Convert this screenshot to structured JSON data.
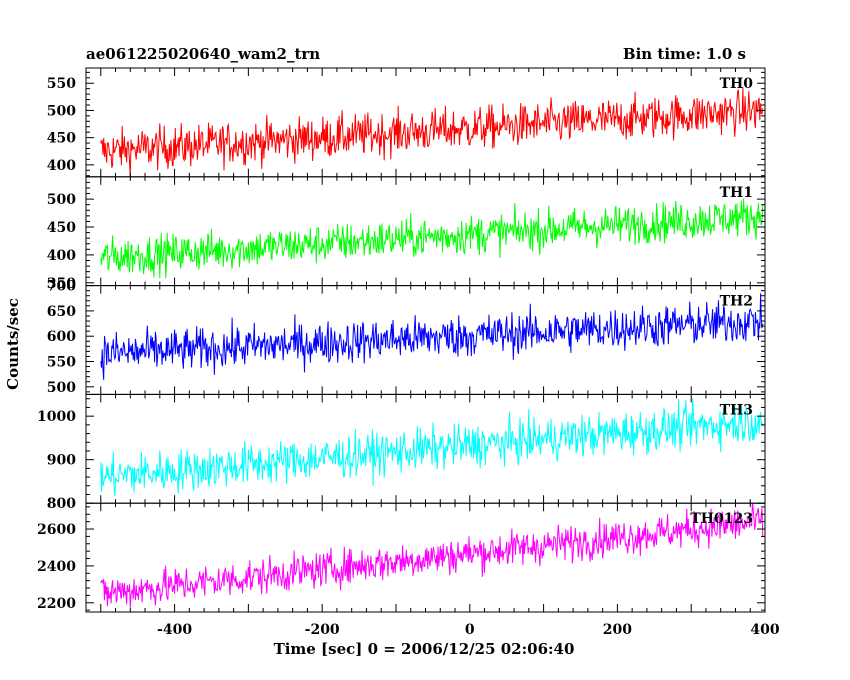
{
  "header": {
    "title": "ae061225020640_wam2_trn",
    "bin_time": "Bin time: 1.0 s"
  },
  "chart_data": {
    "type": "line",
    "xlabel": "Time [sec] 0 = 2006/12/25 02:06:40",
    "ylabel": "Counts/sec",
    "xlim": [
      -520,
      400
    ],
    "xticks": [
      -400,
      -200,
      0,
      200,
      400
    ],
    "x_start": -500,
    "x_end": 397,
    "grid": false,
    "panels": [
      {
        "name": "TH0",
        "color": "#ff0000",
        "ylim": [
          378,
          578
        ],
        "yticks": [
          400,
          450,
          500,
          550
        ],
        "trend_start": 425,
        "trend_end": 500,
        "noise": 28
      },
      {
        "name": "TH1",
        "color": "#00ff00",
        "ylim": [
          345,
          540
        ],
        "yticks": [
          350,
          400,
          450,
          500
        ],
        "trend_start": 395,
        "trend_end": 470,
        "noise": 25
      },
      {
        "name": "TH2",
        "color": "#0000ff",
        "ylim": [
          485,
          700
        ],
        "yticks": [
          500,
          550,
          600,
          650,
          700
        ],
        "trend_start": 565,
        "trend_end": 630,
        "noise": 30
      },
      {
        "name": "TH3",
        "color": "#00ffff",
        "ylim": [
          800,
          1050
        ],
        "yticks": [
          800,
          900,
          1000
        ],
        "trend_start": 860,
        "trend_end": 990,
        "noise": 35
      },
      {
        "name": "TH0123",
        "color": "#ff00ff",
        "ylim": [
          2150,
          2740
        ],
        "yticks": [
          2200,
          2400,
          2600
        ],
        "trend_start": 2250,
        "trend_end": 2640,
        "noise": 70
      }
    ]
  }
}
